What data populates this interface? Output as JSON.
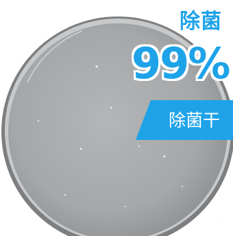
{
  "overlay": {
    "headline": "除菌",
    "percentage": "99%",
    "banner_text": "除菌干"
  },
  "colors": {
    "accent_blue": "#1ea3e8",
    "dish_gray": "#9d9ea0",
    "background": "#ffffff"
  }
}
